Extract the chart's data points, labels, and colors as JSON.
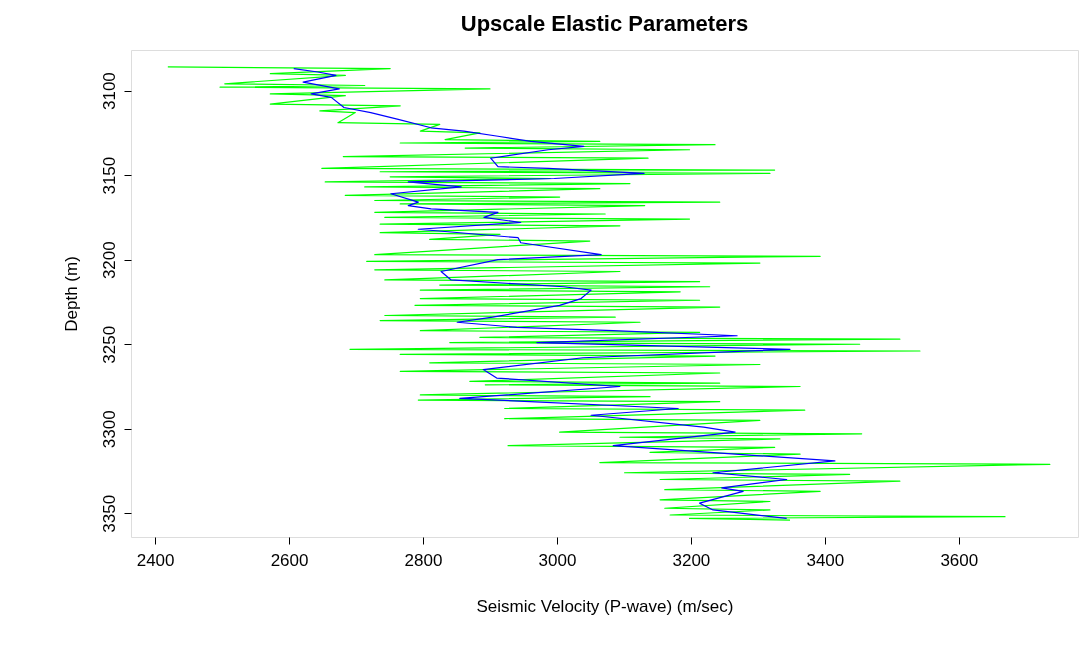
{
  "chart_data": {
    "type": "line",
    "title": "Upscale Elastic Parameters",
    "xlabel": "Seismic Velocity (P-wave) (m/sec)",
    "ylabel": "Depth (m)",
    "xlim": [
      2364,
      3778
    ],
    "ylim": [
      3364,
      3076
    ],
    "xticks": [
      2400,
      2600,
      2800,
      3000,
      3200,
      3400,
      3600
    ],
    "yticks": [
      3100,
      3150,
      3200,
      3250,
      3300,
      3350
    ],
    "grid": false,
    "marker": "none",
    "line_style": "solid",
    "series": [
      {
        "color": "#00ff00",
        "x": [
          2419,
          2751,
          2572,
          2684,
          2504,
          2713,
          2497,
          2900,
          2572,
          2684,
          2572,
          2766,
          2646,
          2699,
          2673,
          2825,
          2796,
          2885,
          2833,
          3064,
          2766,
          3236,
          2863,
          3198,
          2681,
          3136,
          2649,
          3325,
          2736,
          3318,
          2751,
          2990,
          2654,
          3109,
          2713,
          3064,
          2684,
          3004,
          2728,
          3243,
          2766,
          3131,
          2728,
          3072,
          2743,
          3198,
          2736,
          3094,
          2736,
          2915,
          2810,
          3049,
          2728,
          3393,
          2716,
          3303,
          2728,
          3094,
          2743,
          3213,
          2825,
          3228,
          2796,
          3184,
          2796,
          3213,
          2788,
          3243,
          2743,
          3087,
          2736,
          3124,
          2796,
          3213,
          2885,
          3512,
          2840,
          3452,
          2691,
          3542,
          2766,
          3236,
          2810,
          3303,
          2766,
          3243,
          2870,
          3243,
          2893,
          3363,
          2796,
          3139,
          2793,
          3243,
          2922,
          3370,
          2922,
          3303,
          3004,
          3455,
          3094,
          3333,
          2927,
          3325,
          3139,
          3363,
          3064,
          3736,
          3101,
          3437,
          3154,
          3512,
          3161,
          3393,
          3154,
          3318,
          3161,
          3318,
          3169,
          3669,
          3198,
          3348
        ],
        "values": [
          3086,
          3087,
          3090,
          3091,
          3096,
          3097,
          3098,
          3099,
          3102,
          3103,
          3108,
          3109,
          3112,
          3113,
          3119,
          3120,
          3124,
          3125,
          3129,
          3130,
          3131,
          3132,
          3134,
          3135,
          3139,
          3140,
          3146,
          3147,
          3148,
          3149,
          3151,
          3152,
          3154,
          3155,
          3157,
          3158,
          3162,
          3163,
          3165,
          3166,
          3167,
          3168,
          3172,
          3173,
          3175,
          3176,
          3179,
          3180,
          3184,
          3185,
          3188,
          3189,
          3197,
          3198,
          3201,
          3202,
          3206,
          3207,
          3212,
          3213,
          3215,
          3216,
          3218,
          3219,
          3223,
          3224,
          3227,
          3228,
          3233,
          3234,
          3236,
          3237,
          3242,
          3243,
          3246,
          3247,
          3249,
          3250,
          3253,
          3254,
          3256,
          3257,
          3261,
          3262,
          3266,
          3267,
          3272,
          3273,
          3274,
          3275,
          3280,
          3281,
          3283,
          3284,
          3288,
          3289,
          3294,
          3295,
          3302,
          3303,
          3305,
          3306,
          3310,
          3311,
          3314,
          3315,
          3320,
          3321,
          3326,
          3327,
          3330,
          3331,
          3336,
          3337,
          3342,
          3343,
          3347,
          3348,
          3351,
          3352,
          3353,
          3354
        ]
      },
      {
        "color": "#0000ff",
        "x": [
          2607,
          2643,
          2670,
          2621,
          2675,
          2633,
          2663,
          2682,
          2722,
          2763,
          2812,
          2861,
          2912,
          2961,
          3040,
          2987,
          2901,
          2912,
          2987,
          3130,
          2996,
          2778,
          2857,
          2752,
          2793,
          2778,
          2812,
          2912,
          2891,
          2946,
          2793,
          2942,
          2946,
          3066,
          2912,
          2827,
          2842,
          3010,
          3051,
          3036,
          3004,
          2904,
          2851,
          2940,
          3084,
          3269,
          2970,
          3348,
          3039,
          2890,
          2910,
          3094,
          2855,
          3181,
          3051,
          3219,
          3266,
          3084,
          3415,
          3233,
          3343,
          3246,
          3278,
          3213,
          3233,
          3343
        ],
        "values": [
          3087,
          3089,
          3091,
          3095,
          3099,
          3102,
          3104,
          3110,
          3113,
          3117,
          3122,
          3124,
          3127,
          3130,
          3133,
          3135,
          3140,
          3145,
          3146,
          3149,
          3152,
          3154,
          3157,
          3161,
          3166,
          3168,
          3170,
          3172,
          3175,
          3178,
          3182,
          3187,
          3190,
          3197,
          3200,
          3207,
          3212,
          3216,
          3218,
          3223,
          3227,
          3234,
          3237,
          3240,
          3242,
          3245,
          3249,
          3253,
          3258,
          3265,
          3270,
          3275,
          3282,
          3288,
          3292,
          3299,
          3302,
          3310,
          3319,
          3326,
          3330,
          3335,
          3337,
          3344,
          3348,
          3353
        ]
      }
    ]
  }
}
